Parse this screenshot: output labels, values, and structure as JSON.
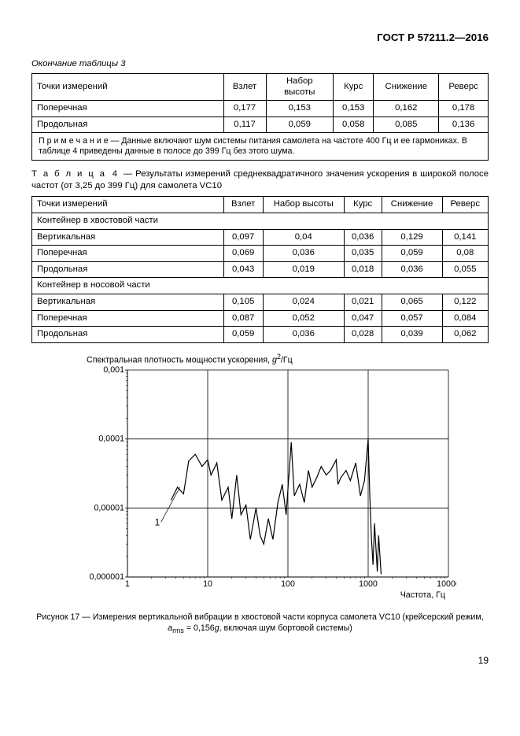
{
  "header": "ГОСТ Р 57211.2—2016",
  "table3_continuation": "Окончание таблицы 3",
  "columns": {
    "points": "Точки измерений",
    "takeoff": "Взлет",
    "climb": "Набор высоты",
    "course": "Курс",
    "descent": "Снижение",
    "reverse": "Реверс"
  },
  "table3_rows": [
    {
      "name": "Поперечная",
      "v": [
        "0,177",
        "0,153",
        "0,153",
        "0,162",
        "0,178"
      ]
    },
    {
      "name": "Продольная",
      "v": [
        "0,117",
        "0,059",
        "0,058",
        "0,085",
        "0,136"
      ]
    }
  ],
  "table3_note": "П р и м е ч а н и е  — Данные включают шум системы питания самолета на частоте 400 Гц и ее гармониках. В таблице 4 приведены данные в полосе до 399 Гц без этого шума.",
  "table4_caption_label": "Т а б л и ц а",
  "table4_caption_num": "4",
  "table4_caption_text": "— Результаты измерений среднеквадратичного значения ускорения в широкой полосе частот (от 3,25 до 399 Гц) для самолета VC10",
  "table4_section1": "Контейнер в хвостовой части",
  "table4_rows1": [
    {
      "name": "Вертикальная",
      "v": [
        "0,097",
        "0,04",
        "0,036",
        "0,129",
        "0,141"
      ]
    },
    {
      "name": "Поперечная",
      "v": [
        "0,069",
        "0,036",
        "0,035",
        "0,059",
        "0,08"
      ]
    },
    {
      "name": "Продольная",
      "v": [
        "0,043",
        "0,019",
        "0,018",
        "0,036",
        "0,055"
      ]
    }
  ],
  "table4_section2": "Контейнер в носовой части",
  "table4_rows2": [
    {
      "name": "Вертикальная",
      "v": [
        "0,105",
        "0,024",
        "0,021",
        "0,065",
        "0,122"
      ]
    },
    {
      "name": "Поперечная",
      "v": [
        "0,087",
        "0,052",
        "0,047",
        "0,057",
        "0,084"
      ]
    },
    {
      "name": "Продольная",
      "v": [
        "0,059",
        "0,036",
        "0,028",
        "0,039",
        "0,062"
      ]
    }
  ],
  "chart": {
    "title_prefix": "Спектральная плотность мощности ускорения, ",
    "title_unit_base": "g",
    "title_unit_exp": "2",
    "title_unit_suffix": "/Гц",
    "x_label": "Частота, Гц",
    "series_label": "1",
    "x_ticks": [
      1,
      10,
      100,
      1000,
      10000
    ],
    "y_ticks_labels": [
      "0,001",
      "0,0001",
      "0,00001",
      "0,000001"
    ],
    "y_ticks_exp": [
      -3,
      -4,
      -5,
      -6
    ],
    "line_color": "#000000",
    "grid_color": "#000000",
    "background_color": "#ffffff",
    "xlim": [
      1,
      10000
    ],
    "ylim": [
      1e-06,
      0.001
    ],
    "data": [
      [
        3.5,
        1.3e-05
      ],
      [
        4.2,
        2e-05
      ],
      [
        5.0,
        1.6e-05
      ],
      [
        5.8,
        4.8e-05
      ],
      [
        7.0,
        6e-05
      ],
      [
        8.5,
        4e-05
      ],
      [
        10,
        5e-05
      ],
      [
        11,
        3e-05
      ],
      [
        13,
        4.5e-05
      ],
      [
        15,
        1.3e-05
      ],
      [
        18,
        2e-05
      ],
      [
        20,
        7e-06
      ],
      [
        23,
        3e-05
      ],
      [
        26,
        8e-06
      ],
      [
        30,
        1.1e-05
      ],
      [
        34,
        3.5e-06
      ],
      [
        40,
        1e-05
      ],
      [
        45,
        4e-06
      ],
      [
        50,
        3e-06
      ],
      [
        57,
        7e-06
      ],
      [
        65,
        3.5e-06
      ],
      [
        75,
        1.2e-05
      ],
      [
        85,
        2.2e-05
      ],
      [
        95,
        8e-06
      ],
      [
        110,
        9e-05
      ],
      [
        120,
        1.5e-05
      ],
      [
        140,
        2.2e-05
      ],
      [
        160,
        1.2e-05
      ],
      [
        180,
        3.5e-05
      ],
      [
        200,
        2e-05
      ],
      [
        230,
        2.8e-05
      ],
      [
        260,
        4e-05
      ],
      [
        300,
        3e-05
      ],
      [
        340,
        3.5e-05
      ],
      [
        400,
        5e-05
      ],
      [
        420,
        2.2e-05
      ],
      [
        460,
        2.8e-05
      ],
      [
        530,
        3.5e-05
      ],
      [
        600,
        2.5e-05
      ],
      [
        700,
        4.5e-05
      ],
      [
        800,
        1.5e-05
      ],
      [
        900,
        2.5e-05
      ],
      [
        1000,
        0.0001
      ],
      [
        1050,
        1.4e-05
      ],
      [
        1100,
        3.5e-06
      ],
      [
        1150,
        1.5e-06
      ],
      [
        1200,
        6e-06
      ],
      [
        1300,
        1.2e-06
      ],
      [
        1350,
        4e-06
      ],
      [
        1450,
        1.1e-06
      ]
    ]
  },
  "figure_caption_line1": "Рисунок 17 — Измерения вертикальной вибрации в хвостовой части корпуса самолета VC10 (крейсерский режим,",
  "figure_caption_a": "a",
  "figure_caption_sub": "rms",
  "figure_caption_mid": " = 0,156",
  "figure_caption_g": "g",
  "figure_caption_end": ", включая шум бортовой системы)",
  "page_number": "19"
}
